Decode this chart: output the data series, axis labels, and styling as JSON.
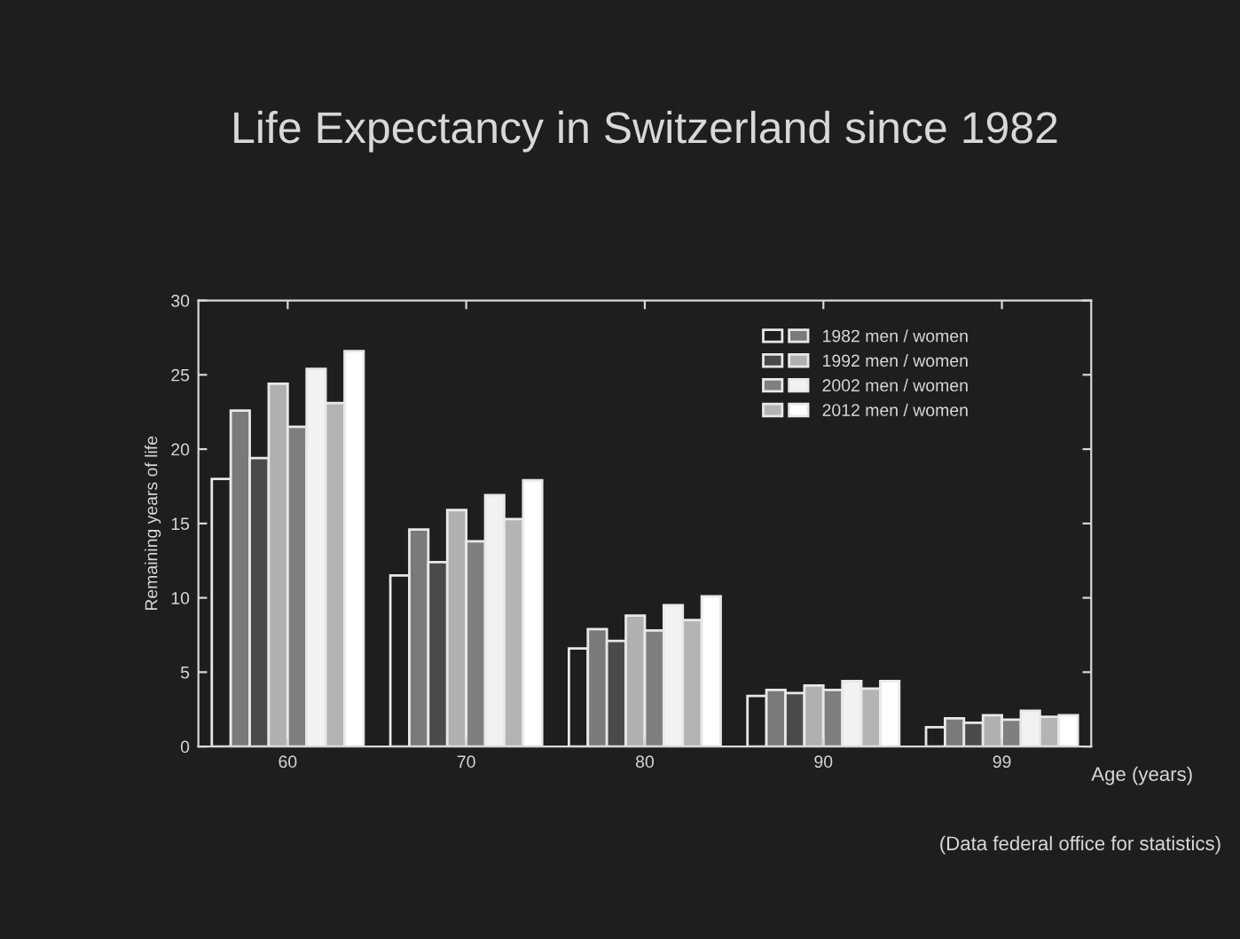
{
  "chart_data": {
    "type": "bar",
    "title": "Life Expectancy in Switzerland since 1982",
    "ylabel": "Remaining years of life",
    "xlabel": "Age (years)",
    "categories": [
      "60",
      "70",
      "80",
      "90",
      "99"
    ],
    "series": [
      {
        "color": "#1e1e1e",
        "values": [
          18.0,
          11.5,
          6.6,
          3.4,
          1.3
        ]
      },
      {
        "name": "1982 men / women",
        "color": "#7a7a7a",
        "values": [
          22.6,
          14.6,
          7.9,
          3.8,
          1.9
        ]
      },
      {
        "color": "#4a4a4a",
        "values": [
          19.4,
          12.4,
          7.1,
          3.6,
          1.6
        ]
      },
      {
        "name": "1992 men / women",
        "color": "#b0b0b0",
        "values": [
          24.4,
          15.9,
          8.8,
          4.1,
          2.1
        ]
      },
      {
        "color": "#7f7f7f",
        "values": [
          21.5,
          13.8,
          7.8,
          3.8,
          1.8
        ]
      },
      {
        "name": "2002 men / women",
        "color": "#f2f2f2",
        "values": [
          25.4,
          16.9,
          9.5,
          4.4,
          2.4
        ]
      },
      {
        "color": "#b4b4b4",
        "values": [
          23.1,
          15.3,
          8.5,
          3.9,
          2.0
        ]
      },
      {
        "name": "2012 men / women",
        "color": "#ffffff",
        "values": [
          26.6,
          17.9,
          10.1,
          4.4,
          2.1
        ]
      }
    ],
    "ylim": [
      0,
      30
    ],
    "yticks": [
      0,
      5,
      10,
      15,
      20,
      25,
      30
    ],
    "legend": "top right",
    "grid": false,
    "annotations": [
      "(Data federal office for statistics)"
    ]
  }
}
